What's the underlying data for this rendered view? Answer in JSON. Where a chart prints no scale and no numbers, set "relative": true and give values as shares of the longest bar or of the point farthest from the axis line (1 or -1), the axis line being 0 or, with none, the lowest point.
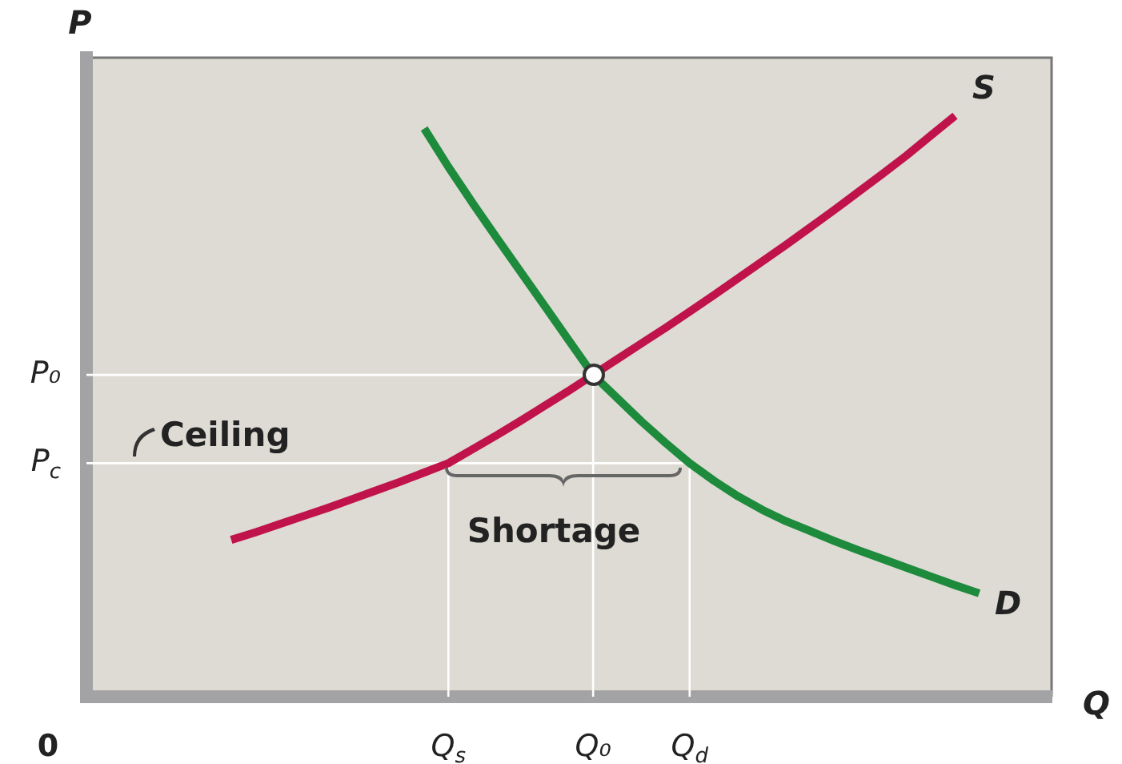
{
  "chart_data": {
    "type": "line",
    "relative": true,
    "xlabel": "Q",
    "ylabel": "P",
    "categories": [
      null,
      null,
      null,
      null,
      null,
      null,
      null,
      null,
      null,
      null,
      null,
      null,
      null,
      null,
      null,
      "Q$_{s}$",
      null,
      null,
      null,
      null,
      null,
      "Q₀",
      null,
      null,
      null,
      "Q$_{d}$",
      null,
      null,
      null,
      null,
      null,
      null,
      null,
      null,
      null,
      null,
      null,
      null,
      null,
      null,
      null
    ],
    "series": [
      {
        "name": "S",
        "color": "#c0134b",
        "values": [
          null,
          null,
          null,
          null,
          null,
          null,
          0.27,
          0.283,
          0.297,
          0.311,
          0.325,
          0.34,
          0.355,
          0.37,
          0.386,
          0.402,
          0.426,
          0.45,
          0.475,
          0.501,
          0.527,
          0.554,
          0.581,
          0.608,
          0.635,
          0.663,
          0.691,
          0.72,
          0.749,
          0.778,
          0.808,
          0.838,
          0.869,
          0.9,
          0.932,
          0.966,
          1,
          null,
          null,
          null,
          null
        ]
      },
      {
        "name": "D",
        "color": "#1d8a3c",
        "values": [
          null,
          null,
          null,
          null,
          null,
          null,
          null,
          null,
          null,
          null,
          null,
          null,
          null,
          null,
          0.978,
          0.912,
          0.85,
          0.79,
          0.731,
          0.672,
          0.613,
          0.554,
          0.514,
          0.474,
          0.437,
          0.402,
          0.372,
          0.345,
          0.322,
          0.302,
          0.285,
          0.268,
          0.252,
          0.237,
          0.222,
          0.207,
          0.192,
          0.178,
          null,
          null,
          null
        ]
      }
    ],
    "ref_lines": [
      {
        "axis": "y",
        "value": 0.554,
        "label": "P₀",
        "color": "#ffffff"
      },
      {
        "axis": "y",
        "value": 0.402,
        "label": "P$_{c}$",
        "color": "#ffffff"
      },
      {
        "axis": "x",
        "value": "Q$_{s}$",
        "color": "#ffffff"
      },
      {
        "axis": "x",
        "value": "Q₀",
        "color": "#ffffff"
      },
      {
        "axis": "x",
        "value": "Q$_{d}$",
        "color": "#ffffff"
      }
    ],
    "annotations": [
      "0",
      "Ceiling",
      "Shortage"
    ]
  }
}
